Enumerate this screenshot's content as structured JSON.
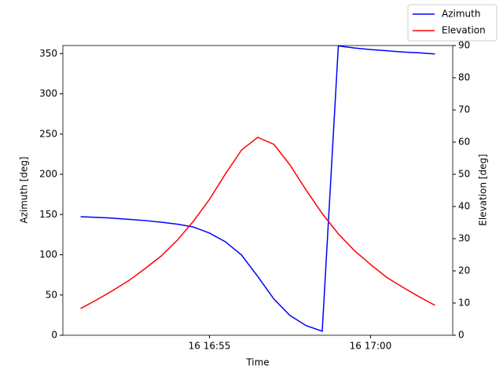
{
  "chart_data": {
    "type": "line",
    "x_label": "Time",
    "y_label": "Azimuth [deg]",
    "y2_label": "Elevation [deg]",
    "x": [
      "16 16:51:00",
      "16 16:51:30",
      "16 16:52:00",
      "16 16:52:30",
      "16 16:53:00",
      "16 16:53:30",
      "16 16:54:00",
      "16 16:54:30",
      "16 16:55:00",
      "16 16:55:30",
      "16 16:56:00",
      "16 16:56:30",
      "16 16:57:00",
      "16 16:57:30",
      "16 16:58:00",
      "16 16:58:30",
      "16 16:59:00",
      "16 16:59:30",
      "16 17:00:00",
      "16 17:00:30",
      "16 17:01:00",
      "16 17:01:30",
      "16 17:02:00"
    ],
    "xlim": [
      "16 16:50:27",
      "16 17:02:33"
    ],
    "xticks": [
      {
        "value": "16 16:55:00",
        "label": "16 16:55"
      },
      {
        "value": "16 17:00:00",
        "label": "16 17:00"
      }
    ],
    "ylim": [
      0,
      360
    ],
    "yticks": [
      0,
      50,
      100,
      150,
      200,
      250,
      300,
      350
    ],
    "y2lim": [
      0,
      90
    ],
    "y2ticks": [
      0,
      10,
      20,
      30,
      40,
      50,
      60,
      70,
      80,
      90
    ],
    "legend": "upper right",
    "series": [
      {
        "name": "Azimuth",
        "color": "#0000ff",
        "values": [
          147.3,
          146.5,
          145.5,
          144,
          142.5,
          140.5,
          138,
          134.5,
          127,
          116,
          99.5,
          73,
          45,
          24.5,
          12,
          5,
          359.5,
          357,
          355,
          353.5,
          352,
          351,
          349.5
        ]
      },
      {
        "name": "Elevation",
        "color": "#ff0000",
        "axis": "y2",
        "values": [
          8.3,
          11,
          13.9,
          17,
          20.7,
          24.6,
          29.5,
          35.4,
          42.2,
          50.2,
          57.6,
          61.5,
          59.3,
          52.9,
          45.1,
          37.8,
          31.5,
          26.3,
          22,
          18,
          14.9,
          12,
          9.3
        ]
      }
    ]
  }
}
